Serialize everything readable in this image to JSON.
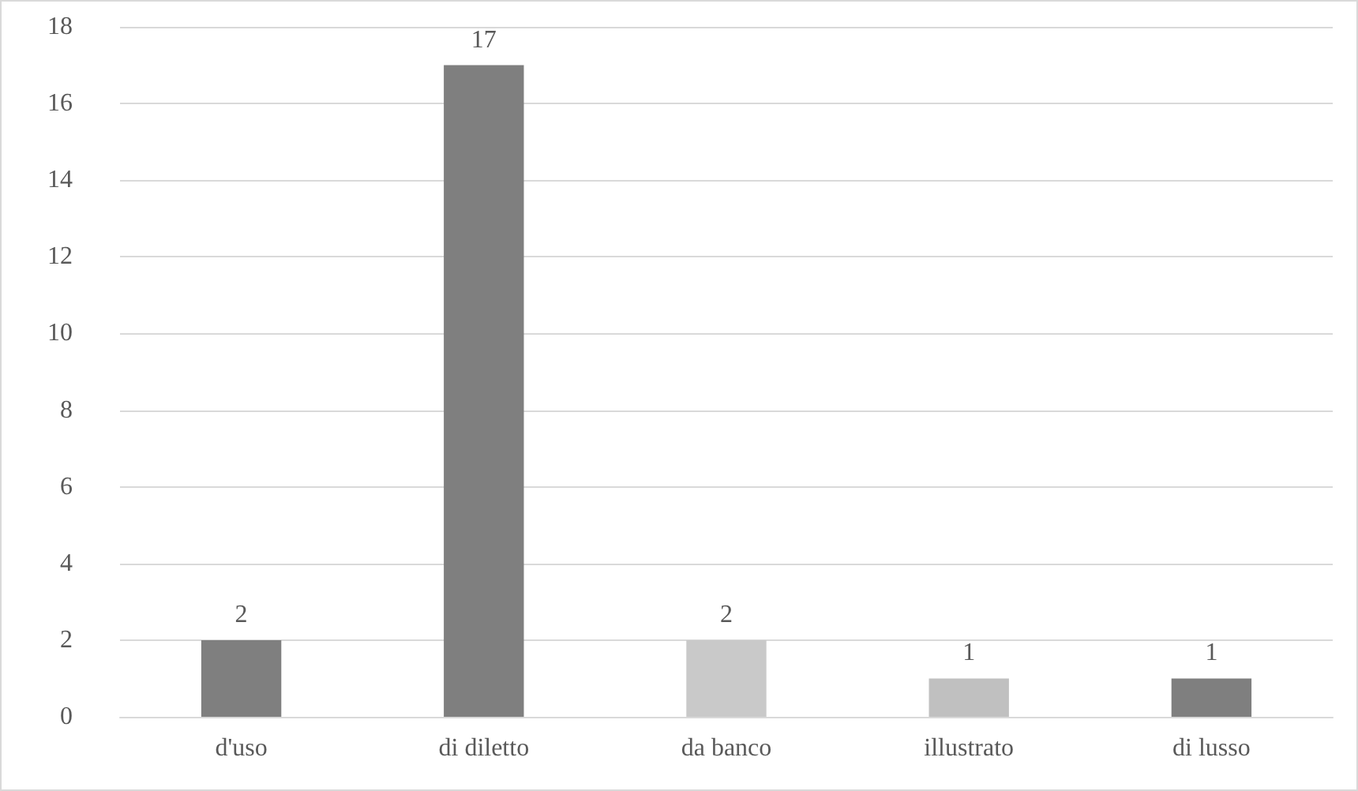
{
  "chart_data": {
    "type": "bar",
    "categories": [
      "d'uso",
      "di diletto",
      "da banco",
      "illustrato",
      "di lusso"
    ],
    "values": [
      2,
      17,
      2,
      1,
      1
    ],
    "colors": [
      "#7f7f7f",
      "#7f7f7f",
      "#c9c9c9",
      "#c0c0c0",
      "#7f7f7f"
    ],
    "ylim": [
      0,
      18
    ],
    "yticks": [
      0,
      2,
      4,
      6,
      8,
      10,
      12,
      14,
      16,
      18
    ],
    "grid": "y",
    "data_labels": true
  }
}
